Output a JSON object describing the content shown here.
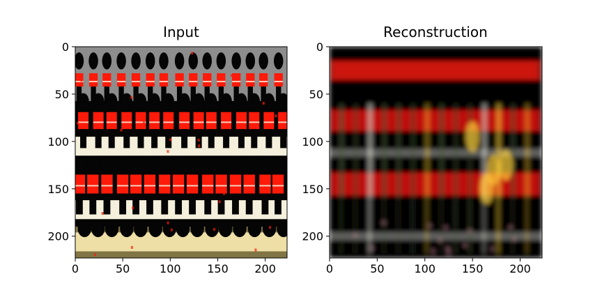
{
  "chart_data": [
    {
      "type": "image",
      "title": "Input",
      "xlim": [
        0,
        223
      ],
      "ylim": [
        223,
        0
      ],
      "xticks": [
        0,
        50,
        100,
        150,
        200
      ],
      "yticks": [
        0,
        50,
        100,
        150,
        200
      ],
      "content": {
        "red_jacket_rows_y": [
          35,
          78,
          145
        ],
        "black_cap_rows_y": [
          15,
          58,
          125,
          192
        ],
        "white_band_rows_y": [
          105,
          172,
          206
        ],
        "column_spacing": 15,
        "colors": {
          "red": "#ff1a0a",
          "black": "#050505",
          "white": "#f4f0dc",
          "yellow": "#e8d27a"
        }
      }
    },
    {
      "type": "image",
      "title": "Reconstruction",
      "xlim": [
        0,
        223
      ],
      "ylim": [
        223,
        0
      ],
      "xticks": [
        0,
        50,
        100,
        150,
        200
      ],
      "yticks": [
        0,
        50,
        100,
        150,
        200
      ],
      "content": {
        "red_band_rows_y": [
          25,
          78,
          145
        ],
        "light_band_rows_y": [
          112,
          200
        ],
        "column_spacing": 15,
        "colors": {
          "red": "#e0140a",
          "black": "#000000",
          "white": "#d8d8d0",
          "yellow": "#ffd23c",
          "green": "#4a5a3a"
        }
      }
    }
  ]
}
